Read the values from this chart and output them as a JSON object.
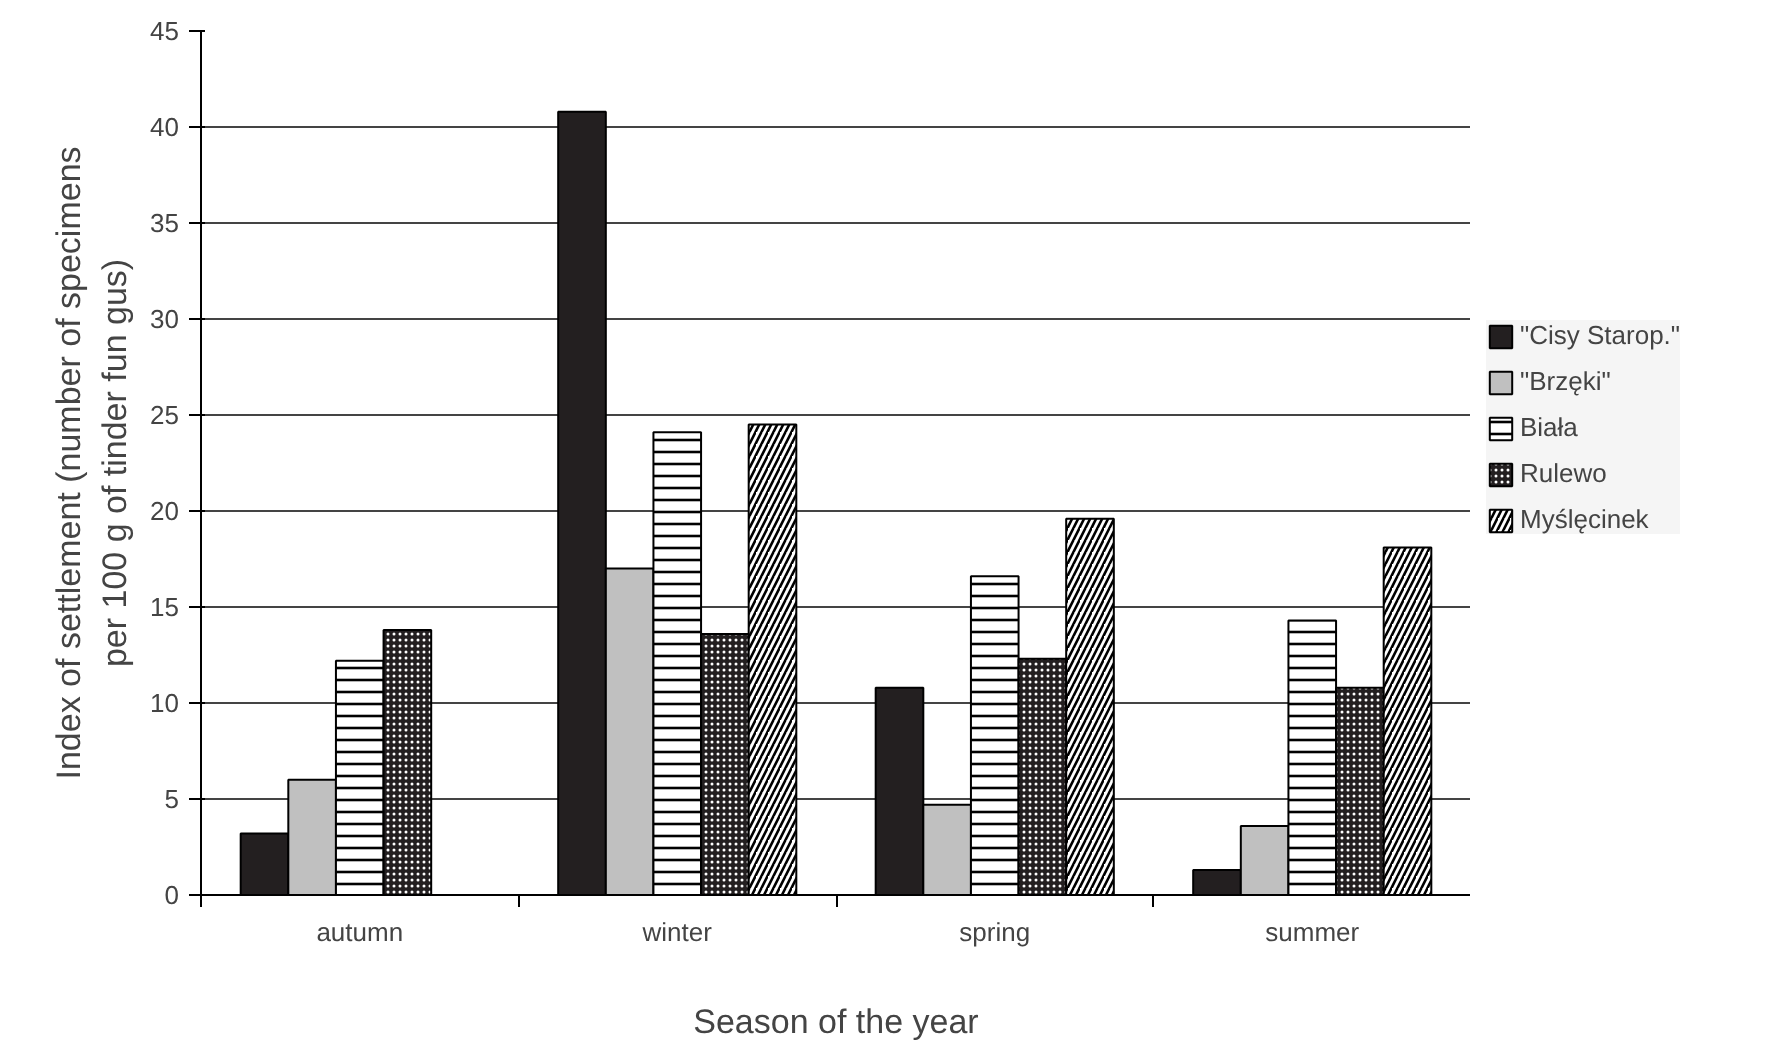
{
  "chart_data": {
    "type": "bar",
    "xlabel": "Season of the year",
    "ylabel": "Index of settlement (number of specimens\nper 100 g of tinder fun gus)",
    "categories": [
      "autumn",
      "winter",
      "spring",
      "summer"
    ],
    "series": [
      {
        "name": "\"Cisy Starop.\"",
        "color": "#231f20",
        "values": [
          3.2,
          40.8,
          10.8,
          1.3
        ]
      },
      {
        "name": "\"Brzęki\"",
        "color": "#c0c0c0",
        "values": [
          6.0,
          17.0,
          4.7,
          3.6
        ]
      },
      {
        "name": "Biała",
        "color": "#ffffff",
        "values": [
          12.2,
          24.1,
          16.6,
          14.3
        ]
      },
      {
        "name": "Rulewo",
        "color": "#231f20",
        "values": [
          13.8,
          13.6,
          12.3,
          10.8
        ]
      },
      {
        "name": "Myślęcinek",
        "color": "#ffffff",
        "values": [
          null,
          24.5,
          19.6,
          18.1
        ]
      }
    ],
    "ylim": [
      0,
      45
    ],
    "yticks": [
      0,
      5,
      10,
      15,
      20,
      25,
      30,
      35,
      40,
      45
    ],
    "grid": "y",
    "legend": "right"
  }
}
